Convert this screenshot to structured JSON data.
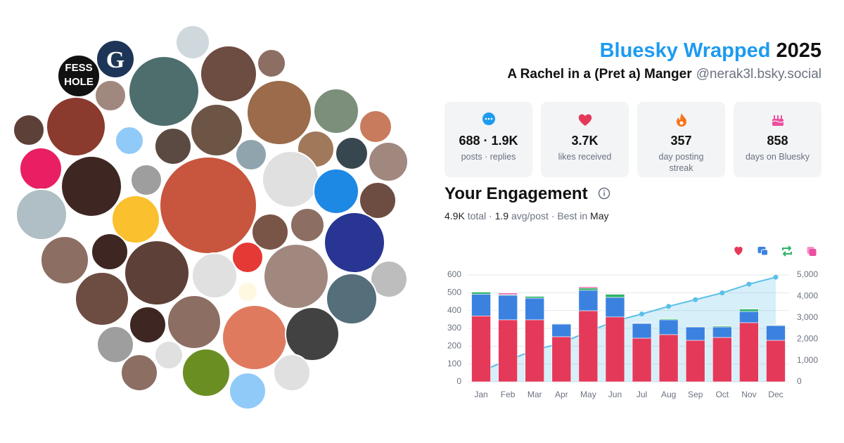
{
  "header": {
    "title": "Bluesky Wrapped",
    "year": "2025",
    "name": "A Rachel in a (Pret a) Manger",
    "handle": "@nerak3l.bsky.social"
  },
  "collage": {
    "labels": [
      "FESS",
      "HOLE",
      "G"
    ]
  },
  "stats": [
    {
      "value": "688 · 1.9K",
      "label": "posts · replies"
    },
    {
      "value": "3.7K",
      "label": "likes received"
    },
    {
      "value": "357",
      "label": "day posting streak"
    },
    {
      "value": "858",
      "label": "days on Bluesky"
    }
  ],
  "engagement": {
    "title": "Your Engagement",
    "total": "4.9K",
    "total_label": "total ·",
    "avg": "1.9",
    "avg_label": "avg/post · Best in",
    "best": "May"
  },
  "chart_data": {
    "type": "bar",
    "stacked": true,
    "categories": [
      "Jan",
      "Feb",
      "Mar",
      "Apr",
      "May",
      "Jun",
      "Jul",
      "Aug",
      "Sep",
      "Oct",
      "Nov",
      "Dec"
    ],
    "series": [
      {
        "color": "#e5395a",
        "values": [
          370,
          348,
          348,
          253,
          399,
          364,
          245,
          265,
          233,
          249,
          332,
          233
        ]
      },
      {
        "color": "#3b82e0",
        "values": [
          122,
          138,
          122,
          71,
          115,
          110,
          83,
          83,
          75,
          59,
          63,
          83
        ]
      },
      {
        "color": "#2fb36b",
        "values": [
          12,
          4,
          10,
          3,
          12,
          18,
          3,
          6,
          3,
          6,
          14,
          3
        ]
      },
      {
        "color": "#ec4fa0",
        "values": [
          2,
          8,
          2,
          1,
          7,
          2,
          1,
          2,
          1,
          2,
          2,
          1
        ]
      },
      {
        "type": "line",
        "axis": "y2",
        "color": "#5bbfe8",
        "values": [
          505,
          1005,
          1485,
          1815,
          2350,
          2840,
          3175,
          3530,
          3845,
          4160,
          4570,
          4895
        ]
      }
    ],
    "ylim": [
      0,
      600
    ],
    "yticks": [
      0,
      100,
      200,
      300,
      400,
      500,
      600
    ],
    "y2lim": [
      0,
      5000
    ],
    "y2ticks": [
      0,
      {
        "value": 1000,
        "label": "1,000"
      },
      {
        "value": 2000,
        "label": "2,000"
      },
      {
        "value": 3000,
        "label": "3,000"
      },
      {
        "value": 4000,
        "label": "4,000"
      },
      {
        "value": 5000,
        "label": "5,000"
      }
    ],
    "grid": true
  }
}
